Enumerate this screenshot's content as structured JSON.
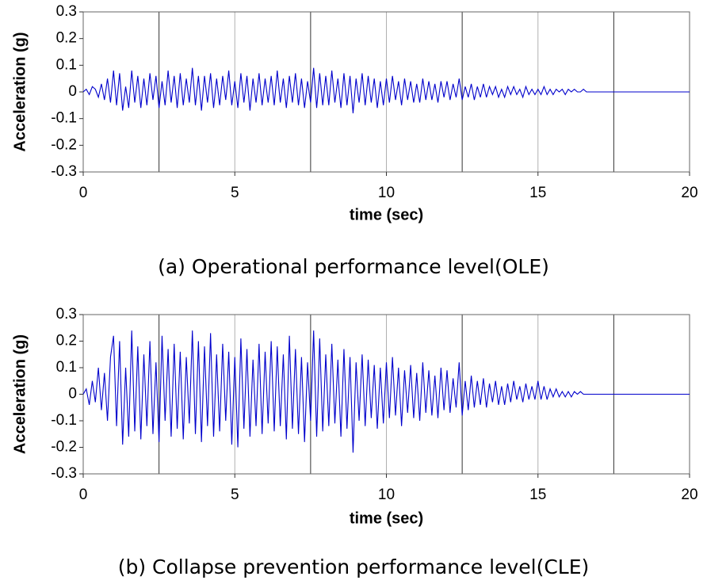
{
  "chart_data": [
    {
      "type": "line",
      "caption": "(a) Operational performance level(OLE)",
      "xlabel": "time (sec)",
      "ylabel": "Acceleration (g)",
      "color": "#0000cc",
      "xlim": [
        0,
        20
      ],
      "xticks": [
        0,
        5,
        10,
        15,
        20
      ],
      "minor_xticks": [
        2.5,
        7.5,
        12.5,
        17.5
      ],
      "ylim": [
        -0.3,
        0.3
      ],
      "yticks": [
        0.3,
        0.2,
        0.1,
        0,
        -0.1,
        -0.2,
        -0.3
      ],
      "grid": true,
      "x": [
        0,
        0.1,
        0.2,
        0.3,
        0.4,
        0.5,
        0.6,
        0.7,
        0.8,
        0.9,
        1,
        1.1,
        1.2,
        1.3,
        1.4,
        1.5,
        1.6,
        1.7,
        1.8,
        1.9,
        2,
        2.1,
        2.2,
        2.3,
        2.4,
        2.5,
        2.6,
        2.7,
        2.8,
        2.9,
        3,
        3.1,
        3.2,
        3.3,
        3.4,
        3.5,
        3.6,
        3.7,
        3.8,
        3.9,
        4,
        4.1,
        4.2,
        4.3,
        4.4,
        4.5,
        4.6,
        4.7,
        4.8,
        4.9,
        5,
        5.1,
        5.2,
        5.3,
        5.4,
        5.5,
        5.6,
        5.7,
        5.8,
        5.9,
        6,
        6.1,
        6.2,
        6.3,
        6.4,
        6.5,
        6.6,
        6.7,
        6.8,
        6.9,
        7,
        7.1,
        7.2,
        7.3,
        7.4,
        7.5,
        7.6,
        7.7,
        7.8,
        7.9,
        8,
        8.1,
        8.2,
        8.3,
        8.4,
        8.5,
        8.6,
        8.7,
        8.8,
        8.9,
        9,
        9.1,
        9.2,
        9.3,
        9.4,
        9.5,
        9.6,
        9.7,
        9.8,
        9.9,
        10,
        10.1,
        10.2,
        10.3,
        10.4,
        10.5,
        10.6,
        10.7,
        10.8,
        10.9,
        11,
        11.1,
        11.2,
        11.3,
        11.4,
        11.5,
        11.6,
        11.7,
        11.8,
        11.9,
        12,
        12.1,
        12.2,
        12.3,
        12.4,
        12.5,
        12.6,
        12.7,
        12.8,
        12.9,
        13,
        13.1,
        13.2,
        13.3,
        13.4,
        13.5,
        13.6,
        13.7,
        13.8,
        13.9,
        14,
        14.1,
        14.2,
        14.3,
        14.4,
        14.5,
        14.6,
        14.7,
        14.8,
        14.9,
        15,
        15.1,
        15.2,
        15.3,
        15.4,
        15.5,
        15.6,
        15.7,
        15.8,
        15.9,
        16,
        16.1,
        16.2,
        16.3,
        16.4,
        16.5,
        16.6,
        16.7,
        16.8,
        16.9,
        17,
        20
      ],
      "values": [
        0,
        0.01,
        -0.01,
        0.02,
        0.01,
        -0.02,
        0.03,
        -0.03,
        0.05,
        -0.04,
        0.08,
        -0.05,
        0.07,
        -0.07,
        0.02,
        -0.06,
        0.08,
        -0.04,
        0.06,
        -0.06,
        0.05,
        -0.05,
        0.07,
        -0.03,
        0.06,
        -0.06,
        0.04,
        -0.05,
        0.08,
        -0.04,
        0.06,
        -0.06,
        0.07,
        -0.05,
        0.05,
        -0.04,
        0.09,
        -0.05,
        0.06,
        -0.07,
        0.06,
        -0.04,
        0.07,
        -0.06,
        0.05,
        -0.05,
        0.06,
        -0.03,
        0.08,
        -0.05,
        0.04,
        -0.06,
        0.07,
        -0.04,
        0.06,
        -0.07,
        0.05,
        -0.04,
        0.07,
        -0.05,
        0.05,
        -0.04,
        0.06,
        -0.05,
        0.08,
        -0.04,
        0.05,
        -0.06,
        0.06,
        -0.04,
        0.07,
        -0.05,
        0.05,
        -0.06,
        0.04,
        -0.04,
        0.09,
        -0.06,
        0.07,
        -0.05,
        0.06,
        -0.05,
        0.08,
        -0.04,
        0.05,
        -0.06,
        0.07,
        -0.05,
        0.06,
        -0.08,
        0.05,
        -0.04,
        0.07,
        -0.05,
        0.06,
        -0.04,
        0.05,
        -0.06,
        0.04,
        -0.05,
        0.05,
        -0.04,
        0.06,
        -0.03,
        0.04,
        -0.05,
        0.05,
        -0.03,
        0.04,
        -0.04,
        0.03,
        -0.04,
        0.05,
        -0.03,
        0.04,
        -0.03,
        0.03,
        -0.04,
        0.04,
        -0.02,
        0.04,
        -0.03,
        0.03,
        -0.02,
        0.05,
        -0.03,
        0.02,
        -0.02,
        0.03,
        -0.03,
        0.02,
        -0.02,
        0.03,
        -0.02,
        0.02,
        -0.01,
        0.02,
        -0.02,
        0.01,
        -0.02,
        0.02,
        -0.01,
        0.02,
        -0.01,
        0.01,
        -0.02,
        0.02,
        -0.01,
        0.01,
        -0.01,
        0.01,
        -0.01,
        0.02,
        -0.01,
        0.01,
        -0.01,
        0.01,
        0,
        0.01,
        -0.01,
        0.01,
        0,
        0.01,
        0,
        0,
        0.01,
        0,
        0,
        0,
        0,
        0,
        0
      ]
    },
    {
      "type": "line",
      "caption": "(b) Collapse prevention performance level(CLE)",
      "xlabel": "time (sec)",
      "ylabel": "Acceleration (g)",
      "color": "#0000cc",
      "xlim": [
        0,
        20
      ],
      "xticks": [
        0,
        5,
        10,
        15,
        20
      ],
      "minor_xticks": [
        2.5,
        7.5,
        12.5,
        17.5
      ],
      "ylim": [
        -0.3,
        0.3
      ],
      "yticks": [
        0.3,
        0.2,
        0.1,
        0,
        -0.1,
        -0.2,
        -0.3
      ],
      "grid": true,
      "x": [
        0,
        0.1,
        0.2,
        0.3,
        0.4,
        0.5,
        0.6,
        0.7,
        0.8,
        0.9,
        1,
        1.1,
        1.2,
        1.3,
        1.4,
        1.5,
        1.6,
        1.7,
        1.8,
        1.9,
        2,
        2.1,
        2.2,
        2.3,
        2.4,
        2.5,
        2.6,
        2.7,
        2.8,
        2.9,
        3,
        3.1,
        3.2,
        3.3,
        3.4,
        3.5,
        3.6,
        3.7,
        3.8,
        3.9,
        4,
        4.1,
        4.2,
        4.3,
        4.4,
        4.5,
        4.6,
        4.7,
        4.8,
        4.9,
        5,
        5.1,
        5.2,
        5.3,
        5.4,
        5.5,
        5.6,
        5.7,
        5.8,
        5.9,
        6,
        6.1,
        6.2,
        6.3,
        6.4,
        6.5,
        6.6,
        6.7,
        6.8,
        6.9,
        7,
        7.1,
        7.2,
        7.3,
        7.4,
        7.5,
        7.6,
        7.7,
        7.8,
        7.9,
        8,
        8.1,
        8.2,
        8.3,
        8.4,
        8.5,
        8.6,
        8.7,
        8.8,
        8.9,
        9,
        9.1,
        9.2,
        9.3,
        9.4,
        9.5,
        9.6,
        9.7,
        9.8,
        9.9,
        10,
        10.1,
        10.2,
        10.3,
        10.4,
        10.5,
        10.6,
        10.7,
        10.8,
        10.9,
        11,
        11.1,
        11.2,
        11.3,
        11.4,
        11.5,
        11.6,
        11.7,
        11.8,
        11.9,
        12,
        12.1,
        12.2,
        12.3,
        12.4,
        12.5,
        12.6,
        12.7,
        12.8,
        12.9,
        13,
        13.1,
        13.2,
        13.3,
        13.4,
        13.5,
        13.6,
        13.7,
        13.8,
        13.9,
        14,
        14.1,
        14.2,
        14.3,
        14.4,
        14.5,
        14.6,
        14.7,
        14.8,
        14.9,
        15,
        15.1,
        15.2,
        15.3,
        15.4,
        15.5,
        15.6,
        15.7,
        15.8,
        15.9,
        16,
        16.1,
        16.2,
        16.3,
        16.4,
        16.5,
        16.6,
        16.7,
        16.8,
        16.9,
        17,
        20
      ],
      "values": [
        0,
        0.02,
        -0.04,
        0.05,
        -0.03,
        0.1,
        -0.06,
        0.08,
        -0.1,
        0.14,
        0.22,
        -0.12,
        0.2,
        -0.19,
        0.1,
        -0.16,
        0.24,
        -0.14,
        0.18,
        -0.17,
        0.15,
        -0.12,
        0.2,
        -0.15,
        0.12,
        -0.18,
        0.22,
        -0.1,
        0.17,
        -0.16,
        0.19,
        -0.13,
        0.16,
        -0.17,
        0.14,
        -0.11,
        0.24,
        -0.15,
        0.2,
        -0.18,
        0.18,
        -0.12,
        0.23,
        -0.16,
        0.15,
        -0.14,
        0.19,
        -0.1,
        0.16,
        -0.19,
        0.14,
        -0.2,
        0.21,
        -0.13,
        0.17,
        -0.16,
        0.13,
        -0.12,
        0.19,
        -0.15,
        0.16,
        -0.11,
        0.2,
        -0.14,
        0.18,
        -0.12,
        0.15,
        -0.17,
        0.22,
        -0.13,
        0.17,
        -0.15,
        0.14,
        -0.18,
        0.12,
        -0.1,
        0.24,
        -0.16,
        0.21,
        -0.14,
        0.15,
        -0.12,
        0.19,
        -0.11,
        0.13,
        -0.16,
        0.17,
        -0.13,
        0.14,
        -0.22,
        0.12,
        -0.1,
        0.15,
        -0.12,
        0.13,
        -0.09,
        0.11,
        -0.13,
        0.1,
        -0.11,
        0.12,
        -0.09,
        0.14,
        -0.08,
        0.1,
        -0.12,
        0.09,
        -0.07,
        0.11,
        -0.09,
        0.08,
        -0.1,
        0.12,
        -0.07,
        0.09,
        -0.08,
        0.07,
        -0.09,
        0.1,
        -0.06,
        0.09,
        -0.07,
        0.06,
        -0.05,
        0.12,
        -0.08,
        0.05,
        -0.06,
        0.07,
        -0.05,
        0.05,
        -0.04,
        0.06,
        -0.05,
        0.04,
        -0.03,
        0.05,
        -0.04,
        0.03,
        -0.04,
        0.04,
        -0.03,
        0.05,
        -0.02,
        0.03,
        -0.03,
        0.04,
        -0.02,
        0.03,
        -0.02,
        0.05,
        -0.02,
        0.03,
        -0.02,
        0.02,
        -0.01,
        0.02,
        -0.01,
        0.01,
        -0.01,
        0.01,
        -0.01,
        0.01,
        0,
        0.01,
        0,
        0,
        0,
        0,
        0,
        0,
        0
      ]
    }
  ]
}
